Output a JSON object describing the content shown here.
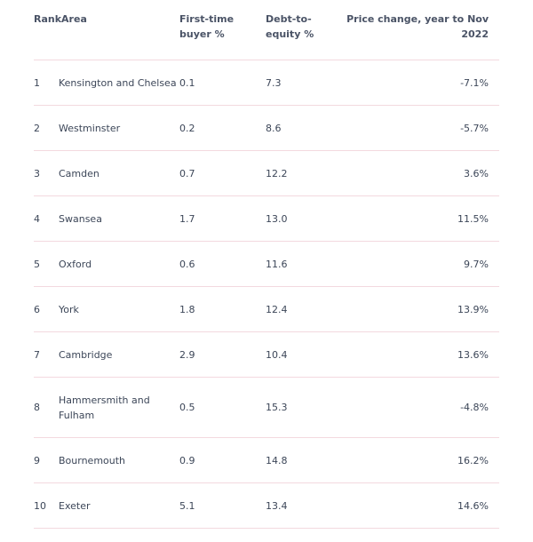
{
  "header": {
    "rank_area": "RankArea",
    "first_time_buyer": "First-time buyer %",
    "debt_to_equity": "Debt-to-equity %",
    "price_change": "Price change, year to Nov 2022"
  },
  "rows": [
    {
      "rank": "1",
      "area": "Kensington and Chelsea",
      "ftb": "0.1",
      "dte": "7.3",
      "price": "-7.1%"
    },
    {
      "rank": "2",
      "area": "Westminster",
      "ftb": "0.2",
      "dte": "8.6",
      "price": "-5.7%"
    },
    {
      "rank": "3",
      "area": "Camden",
      "ftb": "0.7",
      "dte": "12.2",
      "price": "3.6%"
    },
    {
      "rank": "4",
      "area": "Swansea",
      "ftb": "1.7",
      "dte": "13.0",
      "price": "11.5%"
    },
    {
      "rank": "5",
      "area": "Oxford",
      "ftb": "0.6",
      "dte": "11.6",
      "price": "9.7%"
    },
    {
      "rank": "6",
      "area": "York",
      "ftb": "1.8",
      "dte": "12.4",
      "price": "13.9%"
    },
    {
      "rank": "7",
      "area": "Cambridge",
      "ftb": "2.9",
      "dte": "10.4",
      "price": "13.6%"
    },
    {
      "rank": "8",
      "area": "Hammersmith and Fulham",
      "ftb": "0.5",
      "dte": "15.3",
      "price": "-4.8%"
    },
    {
      "rank": "9",
      "area": "Bournemouth",
      "ftb": "0.9",
      "dte": "14.8",
      "price": "16.2%"
    },
    {
      "rank": "10",
      "area": "Exeter",
      "ftb": "5.1",
      "dte": "13.4",
      "price": "14.6%"
    }
  ]
}
